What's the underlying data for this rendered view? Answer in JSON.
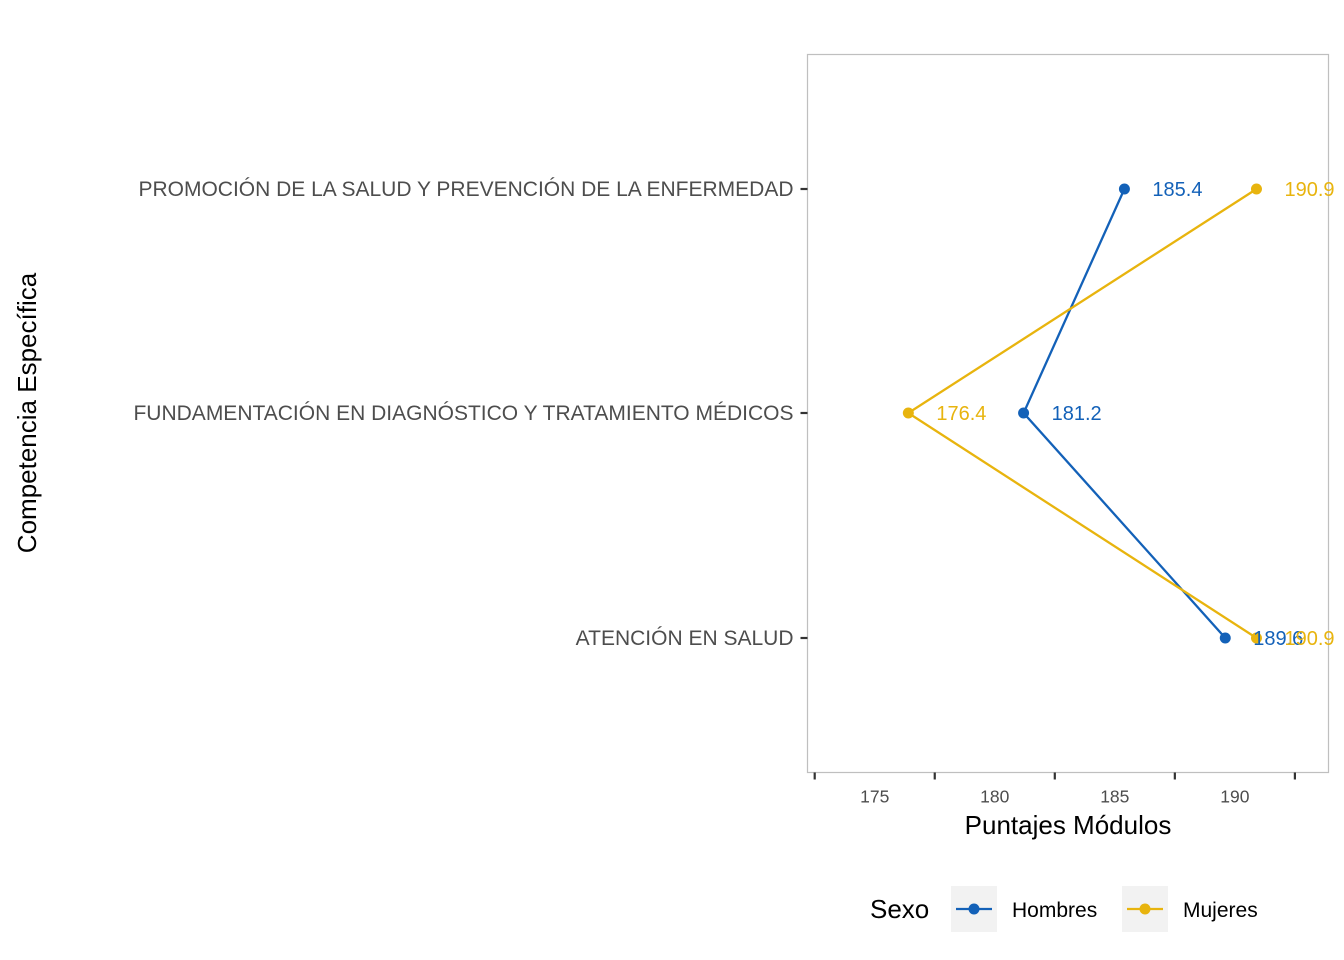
{
  "chart_data": {
    "type": "line",
    "orientation": "horizontal",
    "title": "",
    "xlabel": "Puntajes Módulos",
    "ylabel": "Competencia Específica",
    "xlim": [
      172.2,
      193.9
    ],
    "x_ticks": [
      175,
      180,
      185,
      190
    ],
    "categories": [
      "PROMOCIÓN DE LA SALUD Y PREVENCIÓN DE LA ENFERMEDAD",
      "FUNDAMENTACIÓN EN DIAGNÓSTICO Y TRATAMIENTO MÉDICOS",
      "ATENCIÓN EN SALUD"
    ],
    "series": [
      {
        "name": "Hombres",
        "color": "#1361b8",
        "values": [
          185.4,
          181.2,
          189.6
        ]
      },
      {
        "name": "Mujeres",
        "color": "#e8b40e",
        "values": [
          190.9,
          176.4,
          190.9
        ]
      }
    ],
    "grid": false,
    "legend": {
      "title": "Sexo",
      "position": "bottom"
    }
  }
}
